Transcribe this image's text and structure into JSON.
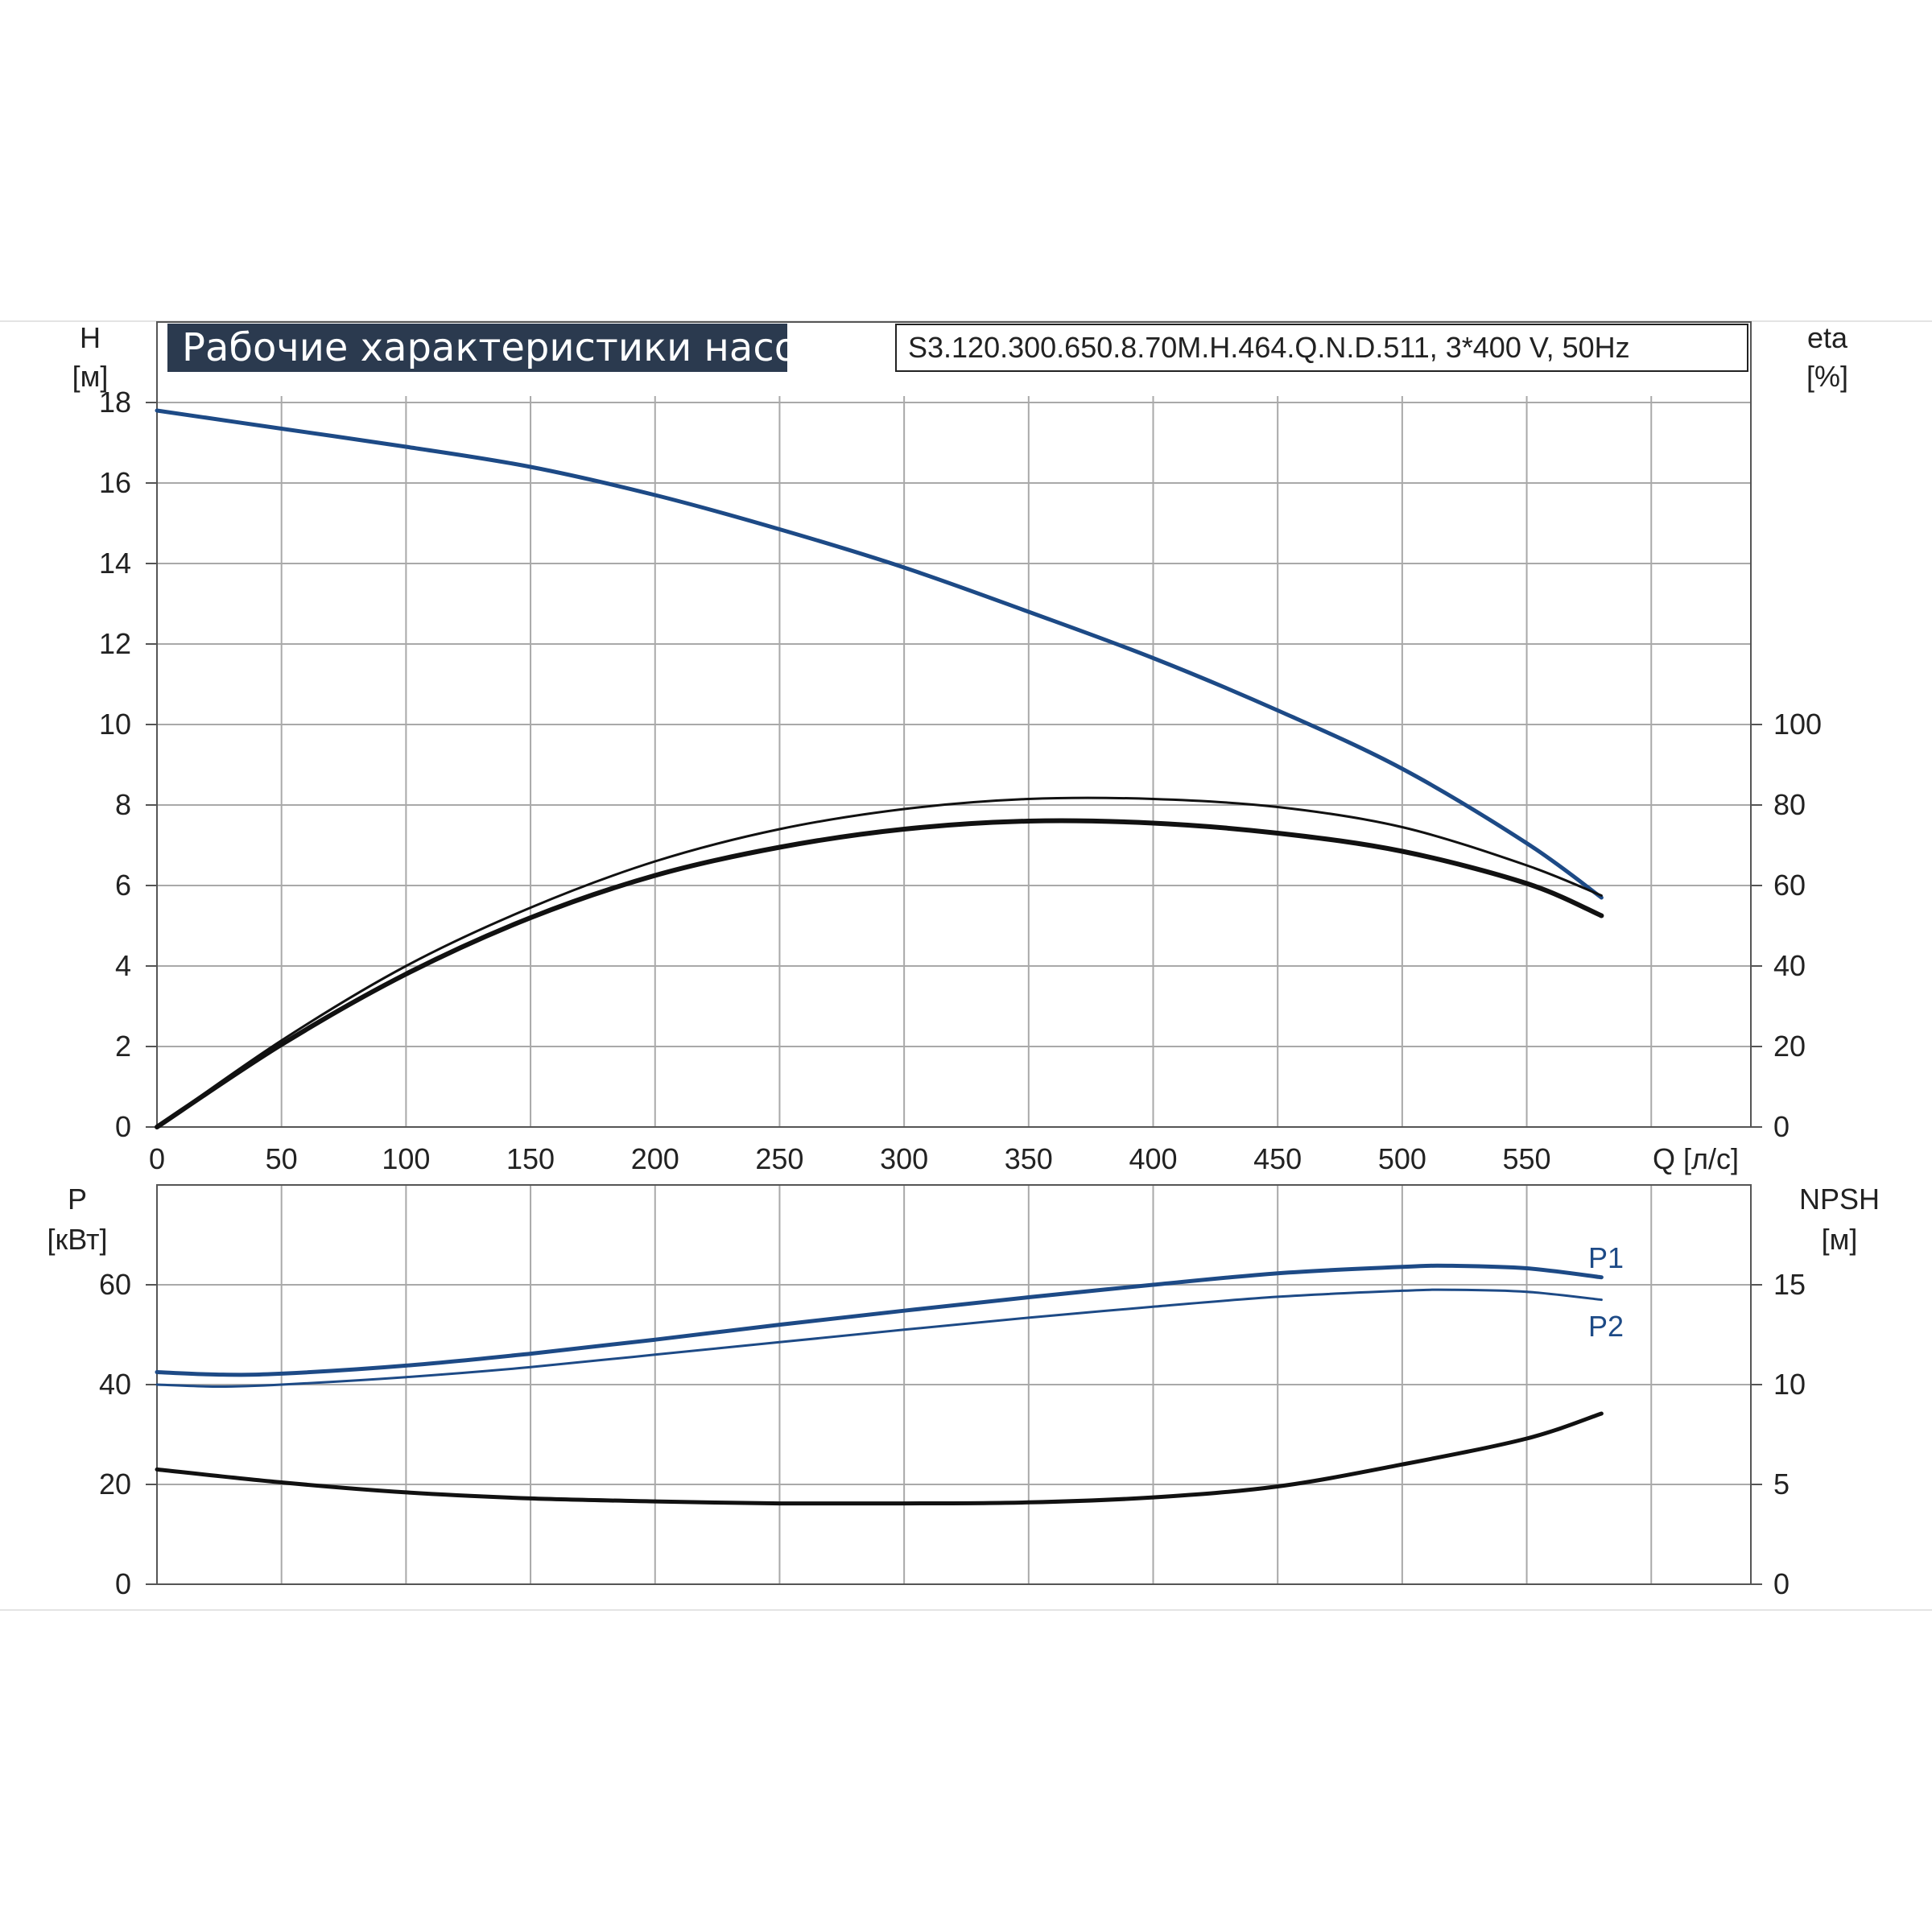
{
  "header": {
    "title": "Рабочие характеристики насоса",
    "model": "S3.120.300.650.8.70M.H.464.Q.N.D.511, 3*400 V, 50Hz"
  },
  "colors": {
    "blue": "#1d4a86",
    "black": "#111111",
    "grid": "#a9a9a9",
    "title_bg": "#2b3a4f"
  },
  "chart_data": [
    {
      "type": "line",
      "title": "Рабочие характеристики насоса",
      "xlabel": "Q [л/с]",
      "x_ticks": [
        "0",
        "50",
        "100",
        "150",
        "200",
        "250",
        "300",
        "350",
        "400",
        "450",
        "500",
        "550"
      ],
      "xlim": [
        0,
        640
      ],
      "ylim": [
        0,
        20
      ],
      "y2lim": [
        0,
        200
      ],
      "left_axis": {
        "name": "H",
        "unit": "[м]",
        "ticks": [
          "0",
          "2",
          "4",
          "6",
          "8",
          "10",
          "12",
          "14",
          "16",
          "18"
        ]
      },
      "right_axis": {
        "name": "eta",
        "unit": "[%]",
        "ticks": [
          "0",
          "20",
          "40",
          "60",
          "80",
          "100"
        ]
      },
      "grid": true,
      "series": [
        {
          "axis": "left",
          "color": "#1d4a86",
          "width": 5,
          "x": [
            0,
            50,
            100,
            150,
            200,
            250,
            300,
            350,
            400,
            450,
            500,
            550,
            580
          ],
          "y": [
            17.8,
            17.35,
            16.9,
            16.4,
            15.7,
            14.85,
            13.9,
            12.8,
            11.65,
            10.35,
            8.9,
            7.05,
            5.7
          ]
        },
        {
          "axis": "right",
          "color": "#111111",
          "width": 3,
          "x": [
            0,
            50,
            100,
            150,
            200,
            250,
            300,
            350,
            400,
            450,
            500,
            550,
            580
          ],
          "y": [
            0,
            21.5,
            40,
            54.5,
            66,
            74,
            79,
            81.5,
            81.5,
            79.5,
            74.5,
            65,
            57.5
          ]
        },
        {
          "axis": "right",
          "color": "#111111",
          "width": 6,
          "x": [
            0,
            50,
            100,
            150,
            200,
            250,
            300,
            350,
            400,
            450,
            500,
            550,
            580
          ],
          "y": [
            0,
            20.5,
            38,
            52,
            62.5,
            69.5,
            74,
            76,
            75.5,
            73,
            68.5,
            60.5,
            52.5
          ]
        }
      ]
    },
    {
      "type": "line",
      "xlim": [
        0,
        640
      ],
      "ylim": [
        0,
        80
      ],
      "y2lim": [
        0,
        20
      ],
      "left_axis": {
        "name": "P",
        "unit": "[кВт]",
        "ticks": [
          "0",
          "20",
          "40",
          "60"
        ]
      },
      "right_axis": {
        "name": "NPSH",
        "unit": "[м]",
        "ticks": [
          "0",
          "5",
          "10",
          "15"
        ]
      },
      "grid": true,
      "series": [
        {
          "name": "P1",
          "axis": "left",
          "color": "#1d4a86",
          "width": 5,
          "x": [
            0,
            25,
            50,
            100,
            150,
            200,
            250,
            300,
            350,
            400,
            450,
            500,
            520,
            550,
            580
          ],
          "y": [
            42.5,
            42.0,
            42.2,
            43.8,
            46.2,
            49.0,
            52.0,
            54.8,
            57.5,
            60.0,
            62.3,
            63.6,
            63.8,
            63.3,
            61.5
          ]
        },
        {
          "name": "P2",
          "axis": "left",
          "color": "#1d4a86",
          "width": 3,
          "x": [
            0,
            25,
            50,
            100,
            150,
            200,
            250,
            300,
            350,
            400,
            450,
            500,
            520,
            550,
            580
          ],
          "y": [
            40.0,
            39.6,
            40.0,
            41.5,
            43.5,
            46.0,
            48.5,
            51.0,
            53.4,
            55.6,
            57.6,
            58.8,
            59.0,
            58.6,
            57.0
          ]
        },
        {
          "name": "",
          "axis": "right",
          "color": "#111111",
          "width": 5,
          "x": [
            0,
            50,
            100,
            150,
            200,
            250,
            300,
            350,
            400,
            450,
            500,
            550,
            580
          ],
          "y": [
            5.75,
            5.1,
            4.6,
            4.3,
            4.15,
            4.05,
            4.05,
            4.1,
            4.35,
            4.9,
            6.0,
            7.3,
            8.55
          ]
        }
      ],
      "labels": [
        "P1",
        "P2"
      ]
    }
  ]
}
